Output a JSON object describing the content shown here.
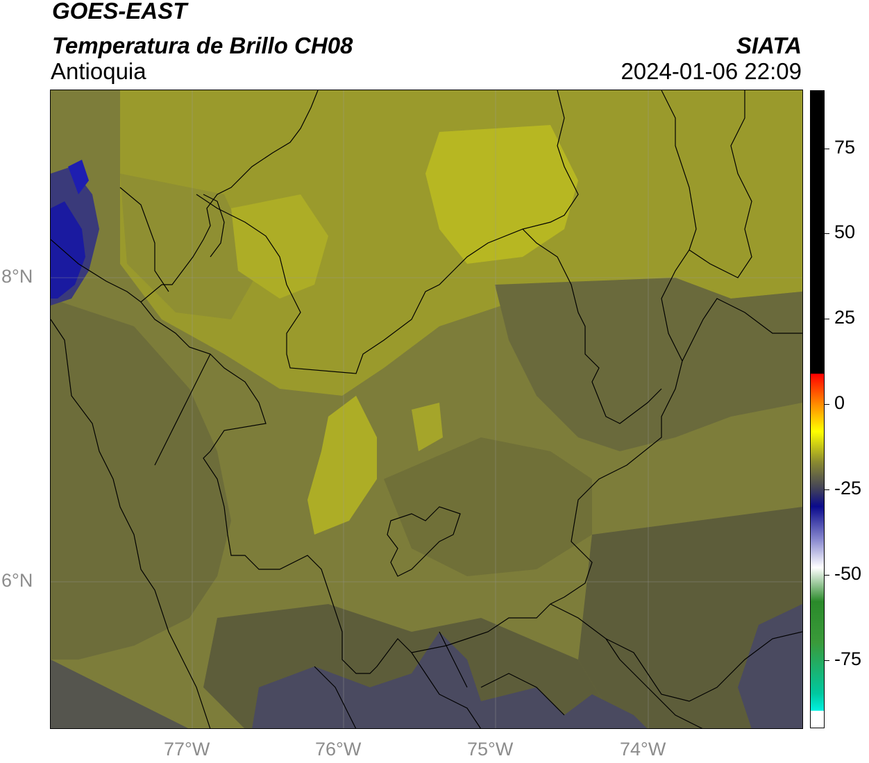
{
  "header": {
    "satellite": "GOES-EAST",
    "product": "Temperatura de Brillo CH08",
    "org": "SIATA",
    "region": "Antioquia",
    "datetime": "2024-01-06 22:09"
  },
  "map": {
    "lon_range": [
      -77.95,
      -72.97
    ],
    "lat_range": [
      4.95,
      9.18
    ],
    "lon_ticks": [
      {
        "value": -77,
        "label": "77°W"
      },
      {
        "value": -76,
        "label": "76°W"
      },
      {
        "value": -75,
        "label": "75°W"
      },
      {
        "value": -74,
        "label": "74°W"
      }
    ],
    "lat_ticks": [
      {
        "value": 8,
        "label": "8°N"
      },
      {
        "value": 6,
        "label": "6°N"
      }
    ],
    "gridlines": true,
    "colors": {
      "dark_olive": "#5d5d3a",
      "olive": "#7d7d3a",
      "yellow_olive": "#9a9a2c",
      "bright_yellow": "#b7b722",
      "slate_blue": "#4a4a60",
      "deep_blue": "#1a1aa0",
      "boundary": "#000000"
    }
  },
  "colorbar": {
    "vmin": -95,
    "vmax": 92,
    "ticks": [
      {
        "value": 75,
        "label": "75"
      },
      {
        "value": 50,
        "label": "50"
      },
      {
        "value": 25,
        "label": "25"
      },
      {
        "value": 0,
        "label": "0"
      },
      {
        "value": -25,
        "label": "-25"
      },
      {
        "value": -50,
        "label": "-50"
      },
      {
        "value": -75,
        "label": "-75"
      }
    ],
    "stops": [
      {
        "value": 92,
        "color": "#000000"
      },
      {
        "value": 9,
        "color": "#000000"
      },
      {
        "value": 8.9,
        "color": "#ff0000"
      },
      {
        "value": 0,
        "color": "#ff8c00"
      },
      {
        "value": -8,
        "color": "#ffff00"
      },
      {
        "value": -17,
        "color": "#8a8a30"
      },
      {
        "value": -25,
        "color": "#40405a"
      },
      {
        "value": -30,
        "color": "#0a0a8c"
      },
      {
        "value": -40,
        "color": "#8c8cd0"
      },
      {
        "value": -48,
        "color": "#ffffff"
      },
      {
        "value": -58,
        "color": "#2a8a2a"
      },
      {
        "value": -70,
        "color": "#3a9a3a"
      },
      {
        "value": -85,
        "color": "#00c8a0"
      },
      {
        "value": -90,
        "color": "#00f0e0"
      },
      {
        "value": -90.1,
        "color": "#ffffff"
      },
      {
        "value": -95,
        "color": "#ffffff"
      }
    ]
  }
}
